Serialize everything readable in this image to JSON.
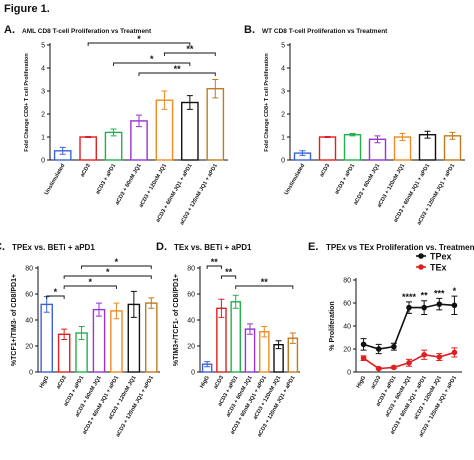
{
  "figure_title": "Figure 1.",
  "chart_data": [
    {
      "type": "bar",
      "panel": "A.",
      "title": "AML CD8 T-cell Proliferation vs Treatment",
      "y_label": "Fold Change CD8+ T cell Proliferation",
      "categories": [
        "Unstimulated",
        "aCD3",
        "aCD3 + aPD1",
        "aCD3 + 60nM JQ1",
        "aCD3 + 120nM JQ1",
        "aCD3 + 60nM JQ1 + aPD1",
        "aCD3 + 120nM JQ1 + aPD1"
      ],
      "values": [
        0.4,
        1.0,
        1.2,
        1.7,
        2.6,
        2.5,
        3.1
      ],
      "errors": [
        0.15,
        0.02,
        0.15,
        0.25,
        0.4,
        0.3,
        0.4
      ],
      "colors": [
        "#3a63d8",
        "#e02020",
        "#22b14c",
        "#9b30d9",
        "#f08a24",
        "#111111",
        "#c07a20"
      ],
      "ylim": [
        0,
        5
      ],
      "yticks": [
        0,
        1,
        2,
        3,
        4,
        5
      ],
      "brackets": [
        {
          "label": "*",
          "from": "aCD3",
          "to": "aCD3 + 60nM JQ1 + aPD1"
        },
        {
          "label": "**",
          "from": "aCD3 + 120nM JQ1",
          "to": "aCD3 + 120nM JQ1 + aPD1"
        },
        {
          "label": "*",
          "from": "aCD3 + aPD1",
          "to": "aCD3 + 60nM JQ1 + aPD1"
        },
        {
          "label": "**",
          "from": "aCD3 + 60nM JQ1",
          "to": "aCD3 + 120nM JQ1 + aPD1"
        }
      ]
    },
    {
      "type": "bar",
      "panel": "B.",
      "title": "WT CD8 T-cell Proliferation vs Treatment",
      "y_label": "Fold Change CD8+ T cell Proliferation",
      "categories": [
        "Unstimulated",
        "aCD3",
        "aCD3 + aPD1",
        "aCD3 + 60nM JQ1",
        "aCD3 + 120nM JQ1",
        "aCD3 + 60nM JQ1 + aPD1",
        "aCD3 + 120nM JQ1 + aPD1"
      ],
      "values": [
        0.3,
        1.0,
        1.1,
        0.9,
        1.0,
        1.1,
        1.05
      ],
      "errors": [
        0.1,
        0.02,
        0.05,
        0.15,
        0.15,
        0.15,
        0.15
      ],
      "colors": [
        "#3a63d8",
        "#e02020",
        "#22b14c",
        "#9b30d9",
        "#f08a24",
        "#111111",
        "#c07a20"
      ],
      "ylim": [
        0,
        5
      ],
      "yticks": [
        0,
        1,
        2,
        3,
        4,
        5
      ],
      "brackets": []
    },
    {
      "type": "bar",
      "panel": "C.",
      "title": "TPEx vs. BETi + aPD1",
      "y_label": "%TCF1+/TIM3- of CD8/PD1+",
      "categories": [
        "HigG",
        "aCD3",
        "aCD3 + aPD1",
        "aCD3 + 60nM JQ1",
        "aCD3 + 60nM JQ1 + aPD1",
        "aCD3 + 120nM JQ1",
        "aCD3 + 120nM JQ1 + aPD1"
      ],
      "values": [
        52,
        29,
        30,
        48,
        47,
        52,
        53
      ],
      "errors": [
        6,
        4,
        5,
        5,
        6,
        10,
        4
      ],
      "colors": [
        "#3a63d8",
        "#e02020",
        "#22b14c",
        "#9b30d9",
        "#f08a24",
        "#111111",
        "#c07a20"
      ],
      "ylim": [
        0,
        80
      ],
      "yticks": [
        0,
        20,
        40,
        60,
        80
      ],
      "brackets": [
        {
          "label": "*",
          "from": "aCD3 + aPD1",
          "to": "aCD3 + 120nM JQ1 + aPD1"
        },
        {
          "label": "*",
          "from": "aCD3",
          "to": "aCD3 + 120nM JQ1 + aPD1"
        },
        {
          "label": "*",
          "from": "aCD3",
          "to": "aCD3 + 60nM JQ1 + aPD1"
        },
        {
          "label": "*",
          "from": "HigG",
          "to": "aCD3"
        }
      ]
    },
    {
      "type": "bar",
      "panel": "D.",
      "title": "TEx vs. BETi + aPD1",
      "y_label": "%TIM3+/TCF1- of CD8/PD1+",
      "categories": [
        "HigG",
        "aCD3",
        "aCD3 + aPD1",
        "aCD3 + 60nM JQ1",
        "aCD3 + 60nM JQ1 + aPD1",
        "aCD3 + 120nM JQ1",
        "aCD3 + 120nM JQ1 + aPD1"
      ],
      "values": [
        6,
        49,
        54,
        33,
        31,
        21,
        26
      ],
      "errors": [
        2,
        7,
        5,
        4,
        4,
        3,
        4
      ],
      "colors": [
        "#3a63d8",
        "#e02020",
        "#22b14c",
        "#9b30d9",
        "#f08a24",
        "#111111",
        "#c07a20"
      ],
      "ylim": [
        0,
        80
      ],
      "yticks": [
        0,
        20,
        40,
        60,
        80
      ],
      "brackets": [
        {
          "label": "**",
          "from": "HigG",
          "to": "aCD3"
        },
        {
          "label": "**",
          "from": "aCD3",
          "to": "aCD3 + aPD1"
        },
        {
          "label": "**",
          "from": "aCD3 + aPD1",
          "to": "aCD3 + 120nM JQ1 + aPD1"
        }
      ]
    },
    {
      "type": "line",
      "panel": "E.",
      "title": "TPEx vs TEx Proliferation vs. Treatment",
      "y_label": "% Proliferation",
      "legend": "top-right",
      "categories": [
        "HigG",
        "aCD3",
        "aCD3 + aPD1",
        "aCD3 + 60nM JQ1",
        "aCD3 + 60nM JQ1 + aPD1",
        "aCD3 + 120nM JQ1",
        "aCD3 + 120nM JQ1 + aPD1"
      ],
      "series": [
        {
          "name": "TPex",
          "color": "#111111",
          "values": [
            24,
            20,
            22,
            56,
            56,
            59,
            58
          ],
          "errors": [
            5,
            4,
            3,
            5,
            6,
            5,
            8
          ]
        },
        {
          "name": "TEx",
          "color": "#e02020",
          "values": [
            12,
            3,
            4,
            8,
            15,
            13,
            17
          ],
          "errors": [
            2,
            1,
            1,
            3,
            4,
            3,
            4
          ]
        }
      ],
      "ylim": [
        0,
        80
      ],
      "yticks": [
        0,
        20,
        40,
        60,
        80
      ],
      "annotations": [
        {
          "label": "****",
          "at": "aCD3 + 60nM JQ1"
        },
        {
          "label": "**",
          "at": "aCD3 + 60nM JQ1 + aPD1"
        },
        {
          "label": "***",
          "at": "aCD3 + 120nM JQ1"
        },
        {
          "label": "*",
          "at": "aCD3 + 120nM JQ1 + aPD1"
        }
      ]
    }
  ]
}
